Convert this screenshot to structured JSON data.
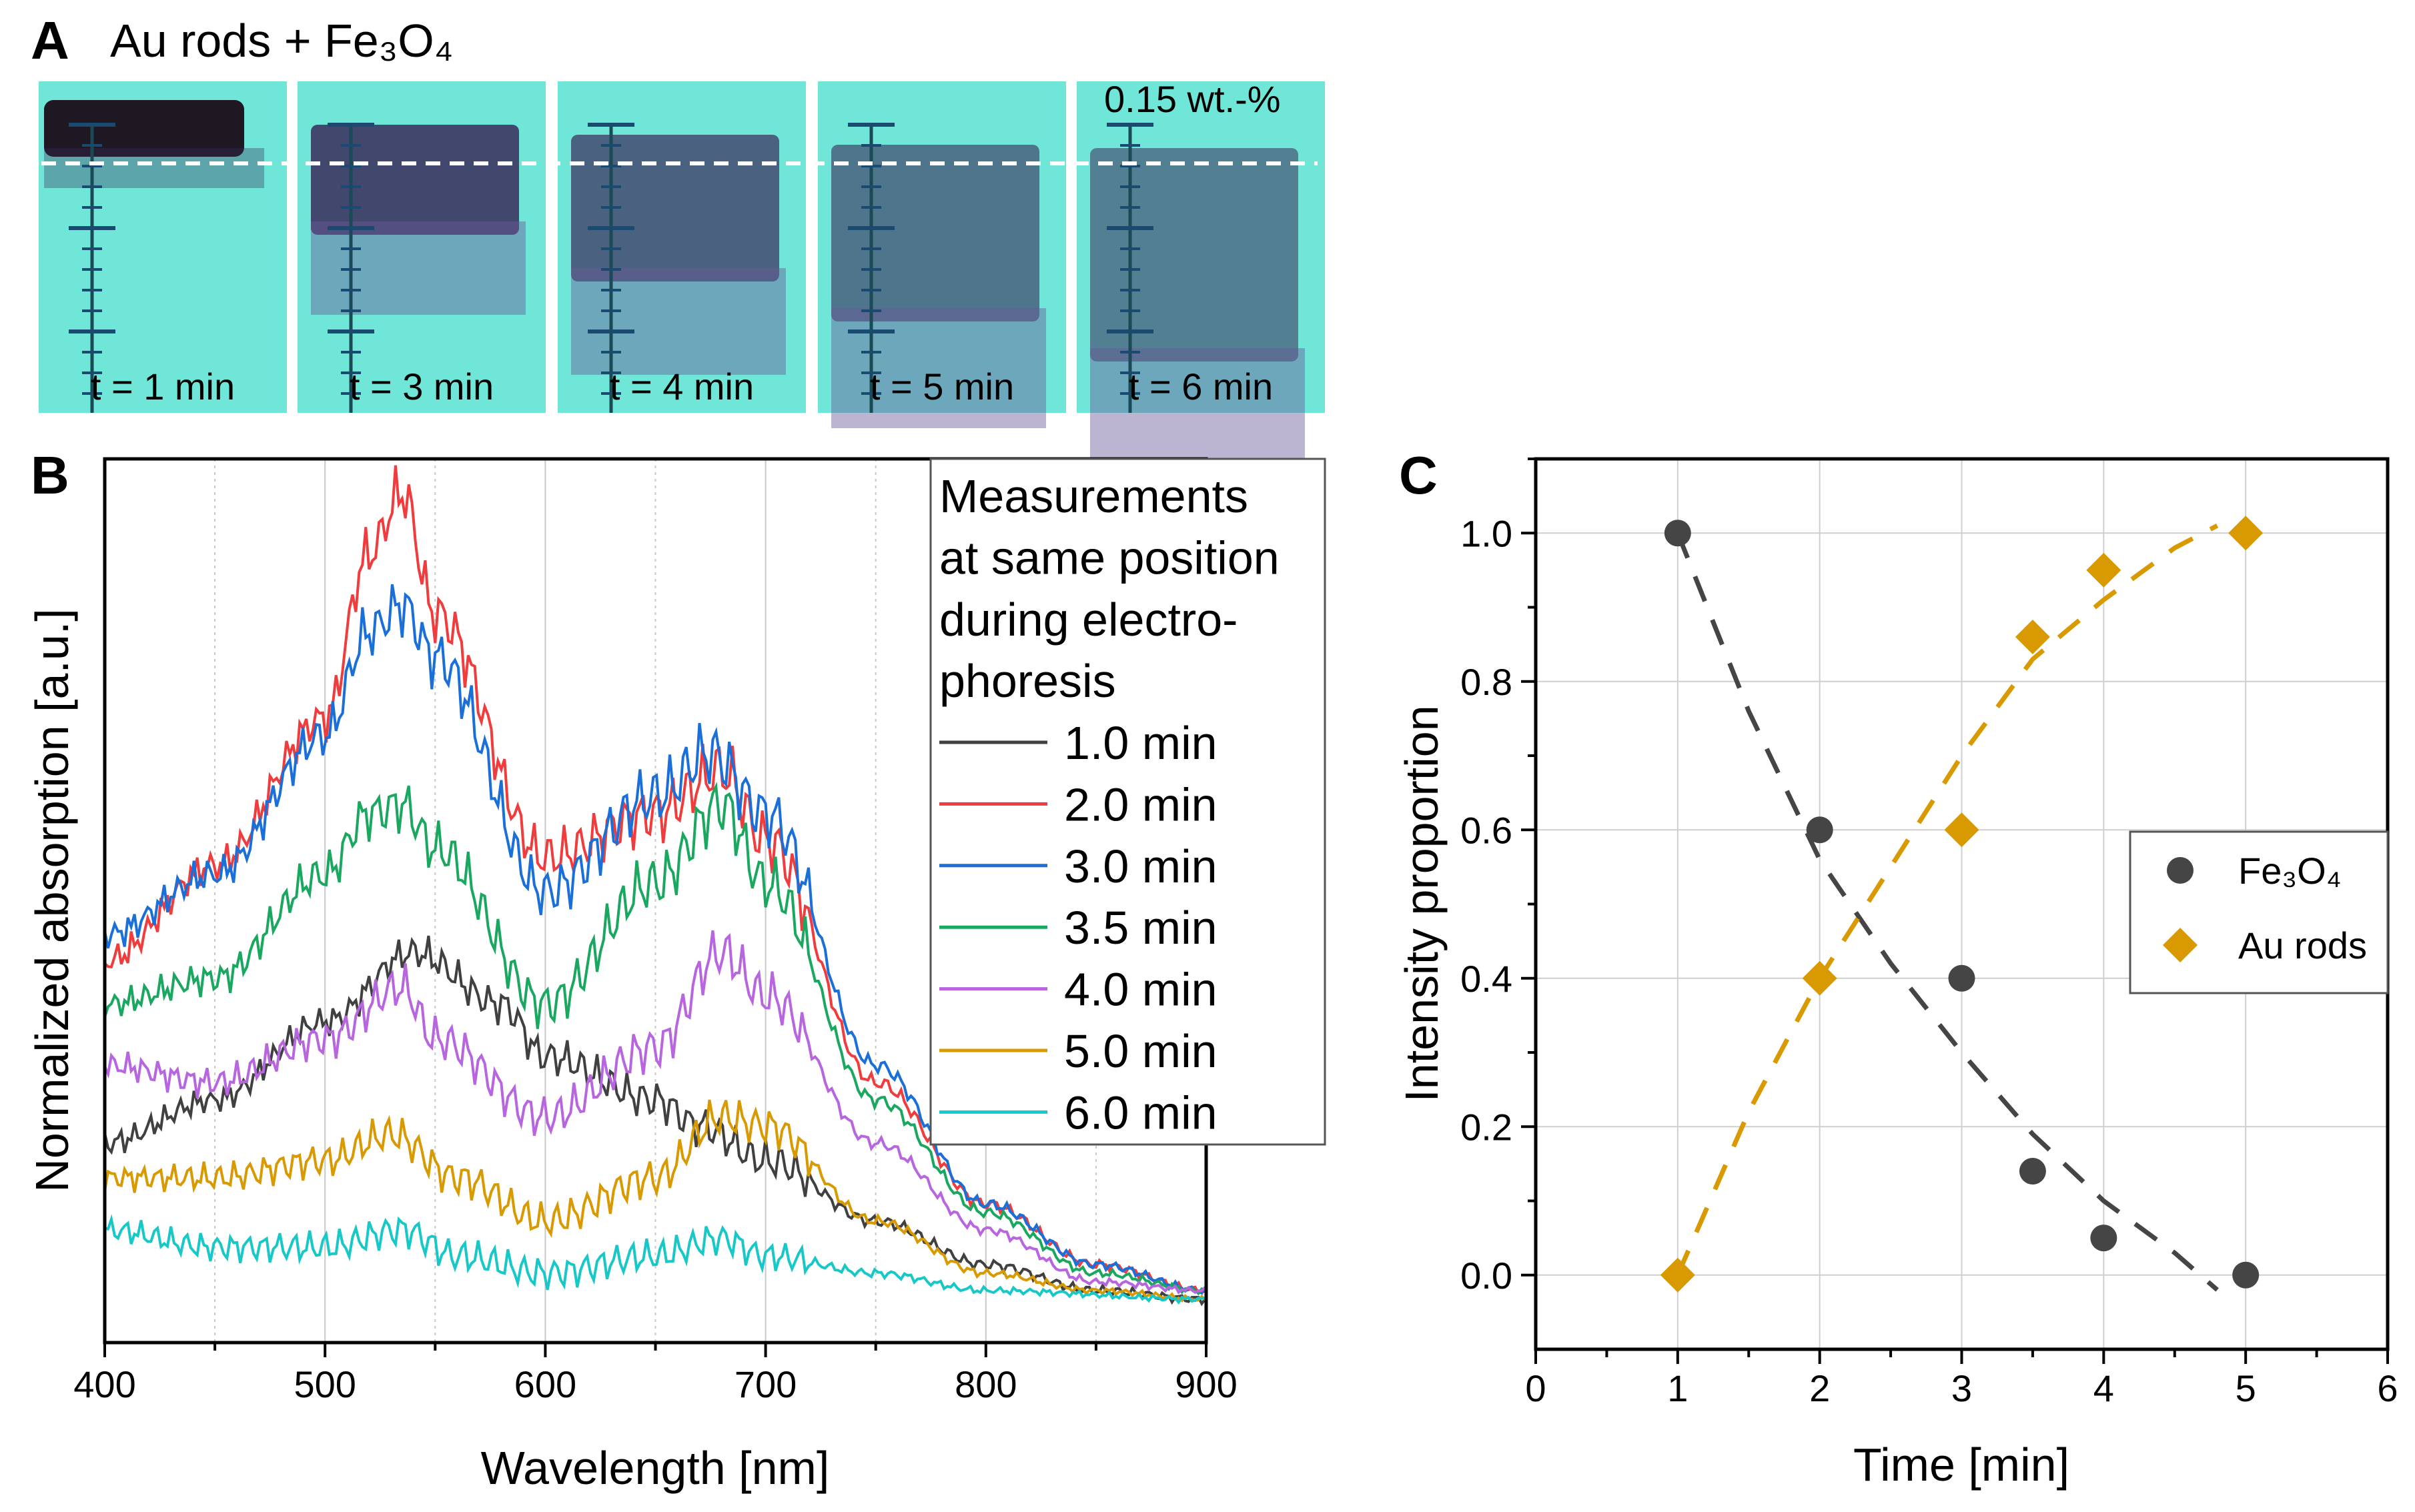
{
  "panel_a": {
    "label": "A",
    "title": "Au rods + Fe₃O₄",
    "concentration": "0.15 wt.-%",
    "frames": [
      "t = 1 min",
      "t = 3 min",
      "t = 4 min",
      "t = 5 min",
      "t = 6 min"
    ],
    "colors": {
      "background": "#6fe6d8",
      "sample": "#3a2a5a"
    }
  },
  "chart_data": [
    {
      "panel": "B",
      "type": "line",
      "xlabel": "Wavelength [nm]",
      "ylabel": "Normalized absorption [a.u.]",
      "xlim": [
        400,
        900
      ],
      "xticks": [
        400,
        500,
        600,
        700,
        800,
        900
      ],
      "ylim": [
        0,
        1
      ],
      "y_tick_labels": false,
      "grid": "vertical",
      "legend_title": [
        "Measurements",
        "at same position",
        "during electro-",
        "phoresis"
      ],
      "legend_placement": "top-right",
      "series": [
        {
          "name": "1.0 min",
          "color": "#404040",
          "x": [
            400,
            450,
            500,
            540,
            580,
            600,
            650,
            670,
            700,
            750,
            800,
            850,
            900
          ],
          "y": [
            0.23,
            0.28,
            0.37,
            0.45,
            0.39,
            0.33,
            0.28,
            0.25,
            0.21,
            0.14,
            0.09,
            0.06,
            0.05
          ]
        },
        {
          "name": "2.0 min",
          "color": "#f03c3c",
          "x": [
            400,
            450,
            500,
            520,
            535,
            550,
            600,
            650,
            680,
            700,
            750,
            800,
            850,
            900
          ],
          "y": [
            0.44,
            0.55,
            0.72,
            0.91,
            0.98,
            0.84,
            0.56,
            0.61,
            0.66,
            0.58,
            0.3,
            0.16,
            0.09,
            0.06
          ]
        },
        {
          "name": "3.0 min",
          "color": "#1a6fd8",
          "x": [
            400,
            450,
            500,
            520,
            535,
            550,
            600,
            650,
            675,
            700,
            750,
            800,
            850,
            900
          ],
          "y": [
            0.47,
            0.54,
            0.7,
            0.82,
            0.85,
            0.79,
            0.52,
            0.63,
            0.68,
            0.61,
            0.32,
            0.16,
            0.09,
            0.06
          ]
        },
        {
          "name": "3.5 min",
          "color": "#1aa860",
          "x": [
            400,
            450,
            500,
            520,
            535,
            550,
            600,
            650,
            680,
            700,
            750,
            800,
            850,
            900
          ],
          "y": [
            0.39,
            0.42,
            0.54,
            0.61,
            0.62,
            0.57,
            0.39,
            0.53,
            0.62,
            0.53,
            0.28,
            0.15,
            0.08,
            0.06
          ]
        },
        {
          "name": "4.0 min",
          "color": "#b865e0",
          "x": [
            400,
            450,
            500,
            535,
            550,
            600,
            650,
            680,
            700,
            750,
            800,
            850,
            900
          ],
          "y": [
            0.32,
            0.3,
            0.35,
            0.41,
            0.35,
            0.26,
            0.34,
            0.45,
            0.4,
            0.23,
            0.13,
            0.07,
            0.06
          ]
        },
        {
          "name": "5.0 min",
          "color": "#d89a00",
          "x": [
            400,
            450,
            500,
            530,
            560,
            600,
            650,
            680,
            700,
            750,
            800,
            850,
            900
          ],
          "y": [
            0.19,
            0.19,
            0.21,
            0.24,
            0.19,
            0.14,
            0.19,
            0.26,
            0.25,
            0.14,
            0.08,
            0.06,
            0.05
          ]
        },
        {
          "name": "6.0 min",
          "color": "#18c8c8",
          "x": [
            400,
            450,
            500,
            535,
            560,
            600,
            650,
            680,
            700,
            750,
            800,
            900
          ],
          "y": [
            0.13,
            0.11,
            0.11,
            0.13,
            0.1,
            0.08,
            0.1,
            0.12,
            0.1,
            0.08,
            0.06,
            0.05
          ]
        }
      ]
    },
    {
      "panel": "C",
      "type": "scatter",
      "xlabel": "Time [min]",
      "ylabel": "Intensity proportion",
      "xlim": [
        0,
        6
      ],
      "ylim": [
        -0.1,
        1.1
      ],
      "xticks": [
        0,
        1,
        2,
        3,
        4,
        5,
        6
      ],
      "yticks": [
        0.0,
        0.2,
        0.4,
        0.6,
        0.8,
        1.0
      ],
      "grid": true,
      "legend_placement": "right",
      "series": [
        {
          "name": "Fe₃O₄",
          "marker": "circle",
          "color": "#454545",
          "x": [
            1,
            2,
            3,
            3.5,
            4,
            5
          ],
          "y": [
            1.0,
            0.6,
            0.4,
            0.14,
            0.05,
            0.0
          ],
          "fit": {
            "x": [
              1,
              1.5,
              2,
              2.5,
              3,
              3.5,
              4,
              4.5,
              4.8
            ],
            "y": [
              1.0,
              0.76,
              0.56,
              0.42,
              0.3,
              0.19,
              0.1,
              0.03,
              -0.02
            ]
          }
        },
        {
          "name": "Au rods",
          "marker": "diamond",
          "color": "#d89a00",
          "x": [
            1,
            2,
            3,
            3.5,
            4,
            5
          ],
          "y": [
            0.0,
            0.4,
            0.6,
            0.86,
            0.95,
            1.0
          ],
          "fit": {
            "x": [
              1,
              1.5,
              2,
              2.5,
              3,
              3.5,
              4,
              4.5,
              4.8
            ],
            "y": [
              0.0,
              0.22,
              0.4,
              0.55,
              0.7,
              0.83,
              0.91,
              0.98,
              1.01
            ]
          }
        }
      ]
    }
  ]
}
